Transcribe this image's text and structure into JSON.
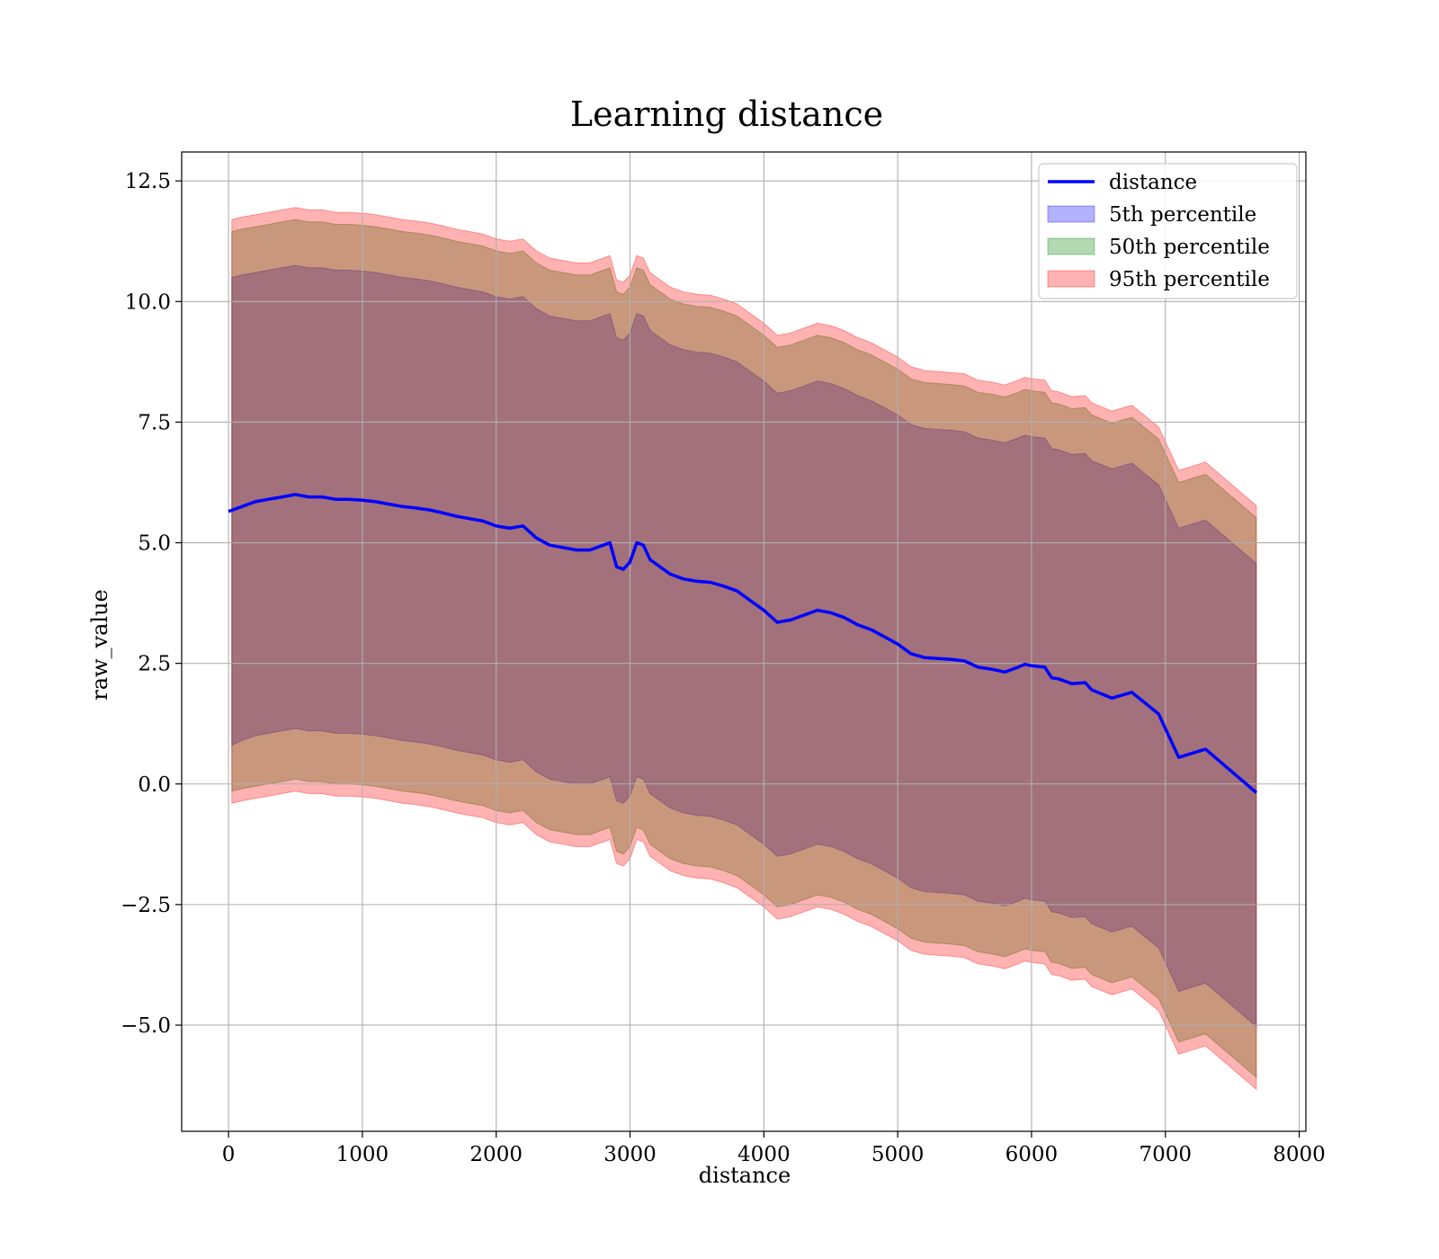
{
  "chart_data": {
    "type": "area",
    "title": "Learning distance",
    "xlabel": "distance",
    "ylabel": "raw_value",
    "xlim": [
      -350,
      8050
    ],
    "ylim": [
      -7.2,
      13.1
    ],
    "x_ticks": [
      0,
      1000,
      2000,
      3000,
      4000,
      5000,
      6000,
      7000,
      8000
    ],
    "x_tick_labels": [
      "0",
      "1000",
      "2000",
      "3000",
      "4000",
      "5000",
      "6000",
      "7000",
      "8000"
    ],
    "y_ticks": [
      12.5,
      10.0,
      7.5,
      5.0,
      2.5,
      0.0,
      -2.5,
      -5.0
    ],
    "y_tick_labels": [
      "12.5",
      "10.0",
      "7.5",
      "5.0",
      "2.5",
      "0.0",
      "−2.5",
      "−5.0"
    ],
    "grid": true,
    "legend_position": "top-right",
    "colors": {
      "line": "#0000ff",
      "p5": "#0000ff",
      "p50": "#008000",
      "p95": "#ff0000",
      "grid": "#b0b0b0"
    },
    "series": [
      {
        "name": "distance",
        "kind": "line",
        "x": [
          0,
          50,
          100,
          150,
          200,
          300,
          400,
          500,
          600,
          700,
          800,
          900,
          1000,
          1100,
          1200,
          1300,
          1400,
          1500,
          1600,
          1700,
          1800,
          1900,
          2000,
          2100,
          2200,
          2300,
          2400,
          2500,
          2600,
          2700,
          2800,
          2850,
          2900,
          2950,
          3000,
          3050,
          3100,
          3150,
          3200,
          3300,
          3400,
          3500,
          3600,
          3700,
          3800,
          3900,
          4000,
          4100,
          4200,
          4300,
          4400,
          4500,
          4600,
          4700,
          4800,
          4900,
          5000,
          5100,
          5200,
          5300,
          5400,
          5500,
          5600,
          5700,
          5800,
          5900,
          5950,
          6000,
          6100,
          6150,
          6200,
          6300,
          6400,
          6450,
          6600,
          6750,
          6950,
          7100,
          7300,
          7680
        ],
        "values": [
          5.65,
          5.7,
          5.75,
          5.8,
          5.85,
          5.9,
          5.95,
          6.0,
          5.95,
          5.95,
          5.9,
          5.9,
          5.88,
          5.85,
          5.8,
          5.75,
          5.72,
          5.68,
          5.62,
          5.55,
          5.5,
          5.45,
          5.35,
          5.3,
          5.35,
          5.1,
          4.95,
          4.9,
          4.85,
          4.85,
          4.95,
          5.0,
          4.5,
          4.45,
          4.6,
          5.0,
          4.95,
          4.65,
          4.55,
          4.35,
          4.25,
          4.2,
          4.18,
          4.1,
          4.0,
          3.8,
          3.6,
          3.35,
          3.4,
          3.5,
          3.6,
          3.55,
          3.45,
          3.3,
          3.2,
          3.05,
          2.9,
          2.7,
          2.62,
          2.6,
          2.58,
          2.55,
          2.42,
          2.38,
          2.32,
          2.42,
          2.48,
          2.45,
          2.42,
          2.2,
          2.18,
          2.08,
          2.1,
          1.95,
          1.78,
          1.9,
          1.45,
          0.55,
          0.72,
          -0.18
        ]
      },
      {
        "name": "5th percentile",
        "kind": "band",
        "x": [
          25,
          100,
          200,
          300,
          400,
          500,
          600,
          700,
          800,
          900,
          1000,
          1100,
          1200,
          1300,
          1400,
          1500,
          1600,
          1700,
          1800,
          1900,
          2000,
          2100,
          2200,
          2300,
          2400,
          2500,
          2600,
          2700,
          2800,
          2850,
          2900,
          2950,
          3000,
          3050,
          3100,
          3150,
          3200,
          3300,
          3400,
          3500,
          3600,
          3700,
          3800,
          3900,
          4000,
          4100,
          4200,
          4300,
          4400,
          4500,
          4600,
          4700,
          4800,
          4900,
          5000,
          5100,
          5200,
          5300,
          5400,
          5500,
          5600,
          5700,
          5800,
          5900,
          5950,
          6000,
          6100,
          6150,
          6200,
          6300,
          6400,
          6450,
          6600,
          6750,
          6950,
          7100,
          7300,
          7680
        ],
        "lower": [
          0.8,
          0.9,
          1.0,
          1.05,
          1.1,
          1.15,
          1.1,
          1.1,
          1.05,
          1.05,
          1.03,
          1.0,
          0.95,
          0.9,
          0.87,
          0.83,
          0.77,
          0.7,
          0.65,
          0.6,
          0.5,
          0.45,
          0.5,
          0.25,
          0.1,
          0.05,
          0.0,
          0.0,
          0.1,
          0.15,
          -0.35,
          -0.4,
          -0.25,
          0.15,
          0.1,
          -0.2,
          -0.3,
          -0.5,
          -0.6,
          -0.65,
          -0.67,
          -0.75,
          -0.85,
          -1.05,
          -1.25,
          -1.5,
          -1.45,
          -1.35,
          -1.25,
          -1.3,
          -1.4,
          -1.55,
          -1.65,
          -1.8,
          -1.95,
          -2.15,
          -2.23,
          -2.25,
          -2.27,
          -2.3,
          -2.43,
          -2.47,
          -2.53,
          -2.43,
          -2.37,
          -2.4,
          -2.43,
          -2.65,
          -2.67,
          -2.77,
          -2.75,
          -2.9,
          -3.07,
          -2.95,
          -3.4,
          -4.3,
          -4.13,
          -5.03
        ],
        "upper": [
          10.5,
          10.55,
          10.6,
          10.65,
          10.7,
          10.75,
          10.7,
          10.7,
          10.65,
          10.65,
          10.63,
          10.6,
          10.55,
          10.5,
          10.47,
          10.43,
          10.37,
          10.3,
          10.25,
          10.2,
          10.1,
          10.05,
          10.1,
          9.85,
          9.7,
          9.65,
          9.6,
          9.6,
          9.7,
          9.75,
          9.25,
          9.2,
          9.35,
          9.75,
          9.7,
          9.4,
          9.3,
          9.1,
          9.0,
          8.95,
          8.93,
          8.85,
          8.75,
          8.55,
          8.35,
          8.1,
          8.15,
          8.25,
          8.35,
          8.3,
          8.2,
          8.05,
          7.95,
          7.8,
          7.65,
          7.45,
          7.37,
          7.35,
          7.33,
          7.3,
          7.17,
          7.13,
          7.07,
          7.17,
          7.23,
          7.2,
          7.17,
          6.95,
          6.93,
          6.83,
          6.85,
          6.7,
          6.53,
          6.65,
          6.2,
          5.3,
          5.47,
          4.57
        ]
      },
      {
        "name": "50th percentile",
        "kind": "band",
        "x": [
          25,
          100,
          200,
          300,
          400,
          500,
          600,
          700,
          800,
          900,
          1000,
          1100,
          1200,
          1300,
          1400,
          1500,
          1600,
          1700,
          1800,
          1900,
          2000,
          2100,
          2200,
          2300,
          2400,
          2500,
          2600,
          2700,
          2800,
          2850,
          2900,
          2950,
          3000,
          3050,
          3100,
          3150,
          3200,
          3300,
          3400,
          3500,
          3600,
          3700,
          3800,
          3900,
          4000,
          4100,
          4200,
          4300,
          4400,
          4500,
          4600,
          4700,
          4800,
          4900,
          5000,
          5100,
          5200,
          5300,
          5400,
          5500,
          5600,
          5700,
          5800,
          5900,
          5950,
          6000,
          6100,
          6150,
          6200,
          6300,
          6400,
          6450,
          6600,
          6750,
          6950,
          7100,
          7300,
          7680
        ],
        "lower": [
          -0.15,
          -0.1,
          -0.05,
          0.0,
          0.05,
          0.1,
          0.05,
          0.05,
          0.0,
          0.0,
          -0.02,
          -0.05,
          -0.1,
          -0.15,
          -0.18,
          -0.22,
          -0.28,
          -0.35,
          -0.4,
          -0.45,
          -0.55,
          -0.6,
          -0.55,
          -0.8,
          -0.95,
          -1.0,
          -1.05,
          -1.05,
          -0.95,
          -0.9,
          -1.4,
          -1.45,
          -1.3,
          -0.9,
          -0.95,
          -1.25,
          -1.35,
          -1.55,
          -1.65,
          -1.7,
          -1.72,
          -1.8,
          -1.9,
          -2.1,
          -2.3,
          -2.55,
          -2.5,
          -2.4,
          -2.3,
          -2.35,
          -2.45,
          -2.6,
          -2.7,
          -2.85,
          -3.0,
          -3.2,
          -3.28,
          -3.3,
          -3.32,
          -3.35,
          -3.48,
          -3.52,
          -3.58,
          -3.48,
          -3.42,
          -3.45,
          -3.48,
          -3.7,
          -3.72,
          -3.82,
          -3.8,
          -3.95,
          -4.12,
          -4.0,
          -4.45,
          -5.35,
          -5.18,
          -6.08
        ],
        "upper": [
          11.45,
          11.5,
          11.55,
          11.6,
          11.65,
          11.7,
          11.65,
          11.65,
          11.6,
          11.6,
          11.58,
          11.55,
          11.5,
          11.45,
          11.42,
          11.38,
          11.32,
          11.25,
          11.2,
          11.15,
          11.05,
          11.0,
          11.05,
          10.8,
          10.65,
          10.6,
          10.55,
          10.55,
          10.65,
          10.7,
          10.2,
          10.15,
          10.3,
          10.7,
          10.65,
          10.35,
          10.25,
          10.05,
          9.95,
          9.9,
          9.88,
          9.8,
          9.7,
          9.5,
          9.3,
          9.05,
          9.1,
          9.2,
          9.3,
          9.25,
          9.15,
          9.0,
          8.9,
          8.75,
          8.6,
          8.4,
          8.32,
          8.3,
          8.28,
          8.25,
          8.12,
          8.08,
          8.02,
          8.12,
          8.18,
          8.15,
          8.12,
          7.9,
          7.88,
          7.78,
          7.8,
          7.65,
          7.48,
          7.6,
          7.15,
          6.25,
          6.42,
          5.52
        ]
      },
      {
        "name": "95th percentile",
        "kind": "band",
        "x": [
          25,
          100,
          200,
          300,
          400,
          500,
          600,
          700,
          800,
          900,
          1000,
          1100,
          1200,
          1300,
          1400,
          1500,
          1600,
          1700,
          1800,
          1900,
          2000,
          2100,
          2200,
          2300,
          2400,
          2500,
          2600,
          2700,
          2800,
          2850,
          2900,
          2950,
          3000,
          3050,
          3100,
          3150,
          3200,
          3300,
          3400,
          3500,
          3600,
          3700,
          3800,
          3900,
          4000,
          4100,
          4200,
          4300,
          4400,
          4500,
          4600,
          4700,
          4800,
          4900,
          5000,
          5100,
          5200,
          5300,
          5400,
          5500,
          5600,
          5700,
          5800,
          5900,
          5950,
          6000,
          6100,
          6150,
          6200,
          6300,
          6400,
          6450,
          6600,
          6750,
          6950,
          7100,
          7300,
          7680
        ],
        "lower": [
          -0.4,
          -0.35,
          -0.3,
          -0.25,
          -0.2,
          -0.15,
          -0.2,
          -0.2,
          -0.25,
          -0.25,
          -0.27,
          -0.3,
          -0.35,
          -0.4,
          -0.43,
          -0.47,
          -0.53,
          -0.6,
          -0.65,
          -0.7,
          -0.8,
          -0.85,
          -0.8,
          -1.05,
          -1.2,
          -1.25,
          -1.3,
          -1.3,
          -1.2,
          -1.15,
          -1.65,
          -1.7,
          -1.55,
          -1.15,
          -1.2,
          -1.5,
          -1.6,
          -1.8,
          -1.9,
          -1.95,
          -1.97,
          -2.05,
          -2.15,
          -2.35,
          -2.55,
          -2.8,
          -2.75,
          -2.65,
          -2.55,
          -2.6,
          -2.7,
          -2.85,
          -2.95,
          -3.1,
          -3.25,
          -3.45,
          -3.53,
          -3.55,
          -3.57,
          -3.6,
          -3.73,
          -3.77,
          -3.83,
          -3.73,
          -3.67,
          -3.7,
          -3.73,
          -3.95,
          -3.97,
          -4.07,
          -4.05,
          -4.2,
          -4.37,
          -4.25,
          -4.7,
          -5.6,
          -5.43,
          -6.33
        ],
        "upper": [
          11.7,
          11.75,
          11.8,
          11.85,
          11.9,
          11.95,
          11.9,
          11.9,
          11.85,
          11.85,
          11.83,
          11.8,
          11.75,
          11.7,
          11.67,
          11.63,
          11.57,
          11.5,
          11.45,
          11.4,
          11.3,
          11.25,
          11.3,
          11.05,
          10.9,
          10.85,
          10.8,
          10.8,
          10.9,
          10.95,
          10.45,
          10.4,
          10.55,
          10.95,
          10.9,
          10.6,
          10.5,
          10.3,
          10.2,
          10.15,
          10.13,
          10.05,
          9.95,
          9.75,
          9.55,
          9.3,
          9.35,
          9.45,
          9.55,
          9.5,
          9.4,
          9.25,
          9.15,
          9.0,
          8.85,
          8.65,
          8.57,
          8.55,
          8.53,
          8.5,
          8.37,
          8.33,
          8.27,
          8.37,
          8.43,
          8.4,
          8.37,
          8.15,
          8.13,
          8.03,
          8.05,
          7.9,
          7.73,
          7.85,
          7.4,
          6.5,
          6.67,
          5.77
        ]
      }
    ]
  }
}
